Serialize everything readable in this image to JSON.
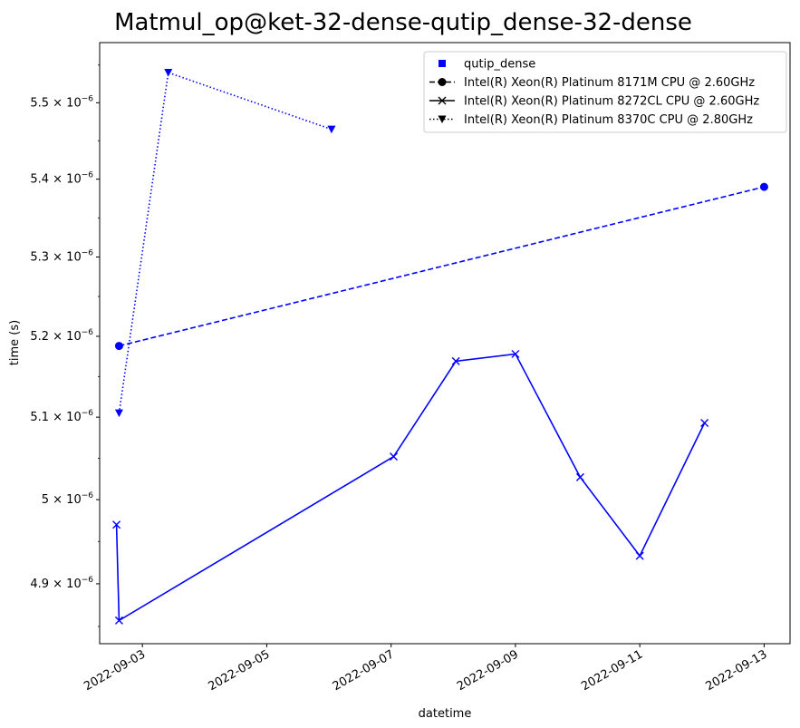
{
  "chart_data": {
    "type": "line",
    "title": "Matmul_op@ket-32-dense-qutip_dense-32-dense",
    "xlabel": "datetime",
    "ylabel": "time (s)",
    "x_axis_type": "date",
    "y_scale": "log",
    "grid": false,
    "legend_position": "top-right",
    "color": "#0000ff",
    "xlim": [
      "2022-09-02T07:30",
      "2022-09-13T10:00"
    ],
    "ylim": [
      4.83e-06,
      5.58e-06
    ],
    "x_ticks": [
      "2022-09-03",
      "2022-09-05",
      "2022-09-07",
      "2022-09-09",
      "2022-09-11",
      "2022-09-13"
    ],
    "y_ticks": [
      {
        "value": 4.9e-06,
        "mantissa": "4.9",
        "exponent": "−6"
      },
      {
        "value": 5e-06,
        "mantissa": "5",
        "exponent": "−6"
      },
      {
        "value": 5.1e-06,
        "mantissa": "5.1",
        "exponent": "−6"
      },
      {
        "value": 5.2e-06,
        "mantissa": "5.2",
        "exponent": "−6"
      },
      {
        "value": 5.3e-06,
        "mantissa": "5.3",
        "exponent": "−6"
      },
      {
        "value": 5.4e-06,
        "mantissa": "5.4",
        "exponent": "−6"
      },
      {
        "value": 5.5e-06,
        "mantissa": "5.5",
        "exponent": "−6"
      }
    ],
    "legend": [
      {
        "label": "qutip_dense",
        "marker": "square",
        "linestyle": "none"
      },
      {
        "label": "Intel(R) Xeon(R) Platinum 8171M CPU @ 2.60GHz",
        "marker": "circle",
        "linestyle": "dashed"
      },
      {
        "label": "Intel(R) Xeon(R) Platinum 8272CL CPU @ 2.60GHz",
        "marker": "x",
        "linestyle": "solid"
      },
      {
        "label": "Intel(R) Xeon(R) Platinum 8370C CPU @ 2.80GHz",
        "marker": "triangle-down",
        "linestyle": "dotted"
      }
    ],
    "series": [
      {
        "name": "Intel(R) Xeon(R) Platinum 8171M CPU @ 2.60GHz",
        "marker": "circle",
        "linestyle": "dashed",
        "points": [
          {
            "x": "2022-09-02T15:00",
            "y": 5.188e-06
          },
          {
            "x": "2022-09-13T00:00",
            "y": 5.39e-06
          }
        ]
      },
      {
        "name": "Intel(R) Xeon(R) Platinum 8272CL CPU @ 2.60GHz",
        "marker": "x",
        "linestyle": "solid",
        "points": [
          {
            "x": "2022-09-02T14:00",
            "y": 4.97e-06
          },
          {
            "x": "2022-09-02T15:00",
            "y": 4.857e-06
          },
          {
            "x": "2022-09-07T01:00",
            "y": 5.052e-06
          },
          {
            "x": "2022-09-08T01:00",
            "y": 5.169e-06
          },
          {
            "x": "2022-09-09T00:00",
            "y": 5.178e-06
          },
          {
            "x": "2022-09-10T01:00",
            "y": 5.027e-06
          },
          {
            "x": "2022-09-11T00:00",
            "y": 4.933e-06
          },
          {
            "x": "2022-09-12T01:00",
            "y": 5.093e-06
          }
        ]
      },
      {
        "name": "Intel(R) Xeon(R) Platinum 8370C CPU @ 2.80GHz",
        "marker": "triangle-down",
        "linestyle": "dotted",
        "points": [
          {
            "x": "2022-09-02T15:00",
            "y": 5.105e-06
          },
          {
            "x": "2022-09-03T10:00",
            "y": 5.54e-06
          },
          {
            "x": "2022-09-06T01:00",
            "y": 5.465e-06
          }
        ]
      }
    ]
  }
}
